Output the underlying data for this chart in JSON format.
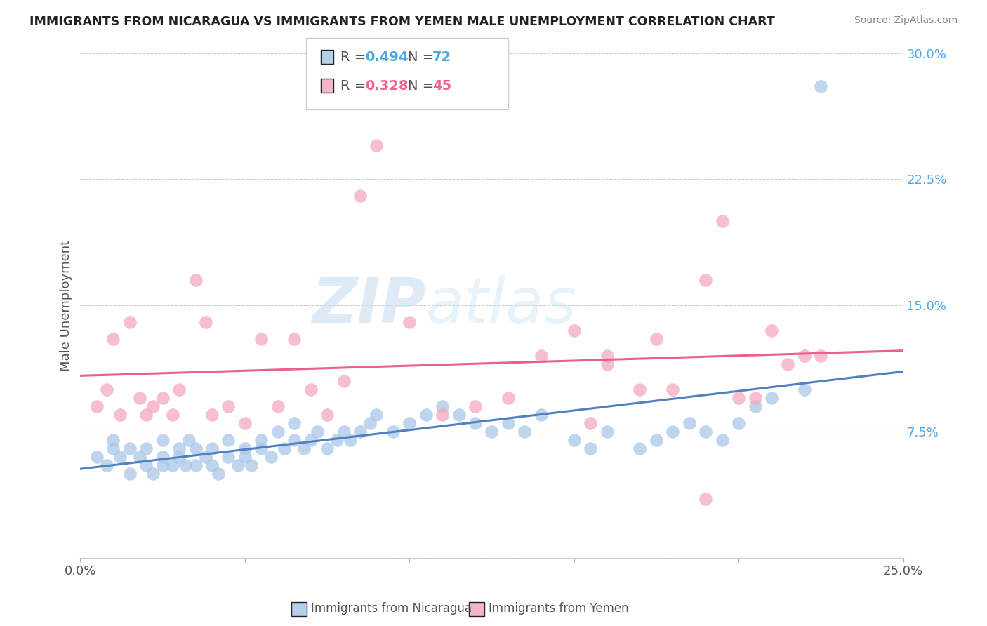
{
  "title": "IMMIGRANTS FROM NICARAGUA VS IMMIGRANTS FROM YEMEN MALE UNEMPLOYMENT CORRELATION CHART",
  "source": "Source: ZipAtlas.com",
  "ylabel": "Male Unemployment",
  "xlim": [
    0.0,
    0.25
  ],
  "ylim": [
    0.0,
    0.3
  ],
  "legend_r1": "0.494",
  "legend_n1": "72",
  "legend_r2": "0.328",
  "legend_n2": "45",
  "color_blue": "#a8c8e8",
  "color_pink": "#f4a8c0",
  "color_blue_text": "#4da6e8",
  "color_pink_text": "#f06090",
  "color_line_blue": "#5080c0",
  "color_line_pink": "#e86090",
  "watermark_zip": "ZIP",
  "watermark_atlas": "atlas",
  "nicaragua_x": [
    0.005,
    0.008,
    0.01,
    0.01,
    0.012,
    0.015,
    0.015,
    0.018,
    0.02,
    0.02,
    0.022,
    0.025,
    0.025,
    0.025,
    0.028,
    0.03,
    0.03,
    0.032,
    0.033,
    0.035,
    0.035,
    0.038,
    0.04,
    0.04,
    0.042,
    0.045,
    0.045,
    0.048,
    0.05,
    0.05,
    0.052,
    0.055,
    0.055,
    0.058,
    0.06,
    0.062,
    0.065,
    0.065,
    0.068,
    0.07,
    0.072,
    0.075,
    0.078,
    0.08,
    0.082,
    0.085,
    0.088,
    0.09,
    0.095,
    0.1,
    0.105,
    0.11,
    0.115,
    0.12,
    0.125,
    0.13,
    0.135,
    0.14,
    0.15,
    0.155,
    0.16,
    0.17,
    0.175,
    0.18,
    0.185,
    0.19,
    0.195,
    0.2,
    0.205,
    0.21,
    0.22,
    0.225
  ],
  "nicaragua_y": [
    0.06,
    0.055,
    0.065,
    0.07,
    0.06,
    0.065,
    0.05,
    0.06,
    0.055,
    0.065,
    0.05,
    0.055,
    0.06,
    0.07,
    0.055,
    0.06,
    0.065,
    0.055,
    0.07,
    0.055,
    0.065,
    0.06,
    0.055,
    0.065,
    0.05,
    0.06,
    0.07,
    0.055,
    0.06,
    0.065,
    0.055,
    0.07,
    0.065,
    0.06,
    0.075,
    0.065,
    0.07,
    0.08,
    0.065,
    0.07,
    0.075,
    0.065,
    0.07,
    0.075,
    0.07,
    0.075,
    0.08,
    0.085,
    0.075,
    0.08,
    0.085,
    0.09,
    0.085,
    0.08,
    0.075,
    0.08,
    0.075,
    0.085,
    0.07,
    0.065,
    0.075,
    0.065,
    0.07,
    0.075,
    0.08,
    0.075,
    0.07,
    0.08,
    0.09,
    0.095,
    0.1,
    0.28
  ],
  "yemen_x": [
    0.005,
    0.008,
    0.01,
    0.012,
    0.015,
    0.018,
    0.02,
    0.022,
    0.025,
    0.028,
    0.03,
    0.035,
    0.038,
    0.04,
    0.045,
    0.05,
    0.055,
    0.06,
    0.065,
    0.07,
    0.075,
    0.08,
    0.085,
    0.09,
    0.1,
    0.11,
    0.12,
    0.13,
    0.14,
    0.15,
    0.155,
    0.16,
    0.17,
    0.18,
    0.19,
    0.2,
    0.205,
    0.21,
    0.215,
    0.22,
    0.225,
    0.195,
    0.175,
    0.16,
    0.19
  ],
  "yemen_y": [
    0.09,
    0.1,
    0.13,
    0.085,
    0.14,
    0.095,
    0.085,
    0.09,
    0.095,
    0.085,
    0.1,
    0.165,
    0.14,
    0.085,
    0.09,
    0.08,
    0.13,
    0.09,
    0.13,
    0.1,
    0.085,
    0.105,
    0.215,
    0.245,
    0.14,
    0.085,
    0.09,
    0.095,
    0.12,
    0.135,
    0.08,
    0.115,
    0.1,
    0.1,
    0.165,
    0.095,
    0.095,
    0.135,
    0.115,
    0.12,
    0.12,
    0.2,
    0.13,
    0.12,
    0.035
  ]
}
